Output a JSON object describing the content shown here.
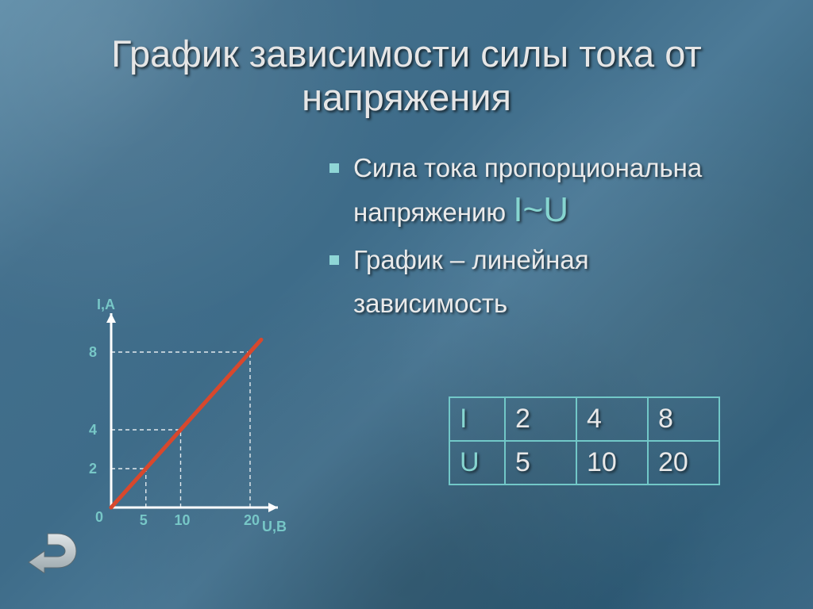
{
  "slide": {
    "background_color": "#3d6c89",
    "title": "График зависимости силы тока от\nнапряжения",
    "title_color": "#e6e6e6",
    "title_fontsize": 47
  },
  "bullets": {
    "marker_color": "#8fd6d6",
    "text_color": "#eaeaea",
    "text_fontsize": 33,
    "accent_color": "#86d5d0",
    "accent_fontsize": 44,
    "items": [
      {
        "prefix": "Сила тока пропорциональна напряжению ",
        "accent": "I~U"
      },
      {
        "prefix": "График – линейная зависимость",
        "accent": ""
      }
    ]
  },
  "chart": {
    "type": "line",
    "origin_label": "0",
    "y_axis_label": "I,А",
    "x_axis_label": "U,В",
    "axis_color": "#ffffff",
    "axis_width": 3,
    "label_color": "#77c7c7",
    "label_fontsize": 18,
    "line_color": "#d8482d",
    "line_width": 5,
    "dash_color": "rgba(255,255,255,0.85)",
    "x_ticks": [
      5,
      10,
      20
    ],
    "y_ticks": [
      2,
      4,
      8
    ],
    "x_range": [
      0,
      24
    ],
    "y_range": [
      0,
      10
    ],
    "points": [
      [
        0,
        0
      ],
      [
        5,
        2
      ],
      [
        10,
        4
      ],
      [
        20,
        8
      ]
    ]
  },
  "table": {
    "border_color": "#72c8c8",
    "header_color": "#86d5d0",
    "value_color": "#e8e8e8",
    "fontsize": 34,
    "rows": [
      {
        "label": "I",
        "values": [
          "2",
          "4",
          "8"
        ]
      },
      {
        "label": "U",
        "values": [
          "5",
          "10",
          "20"
        ]
      }
    ]
  },
  "nav": {
    "back_arrow_color_top": "#dfe4e6",
    "back_arrow_color_bottom": "#9aa6ab"
  }
}
